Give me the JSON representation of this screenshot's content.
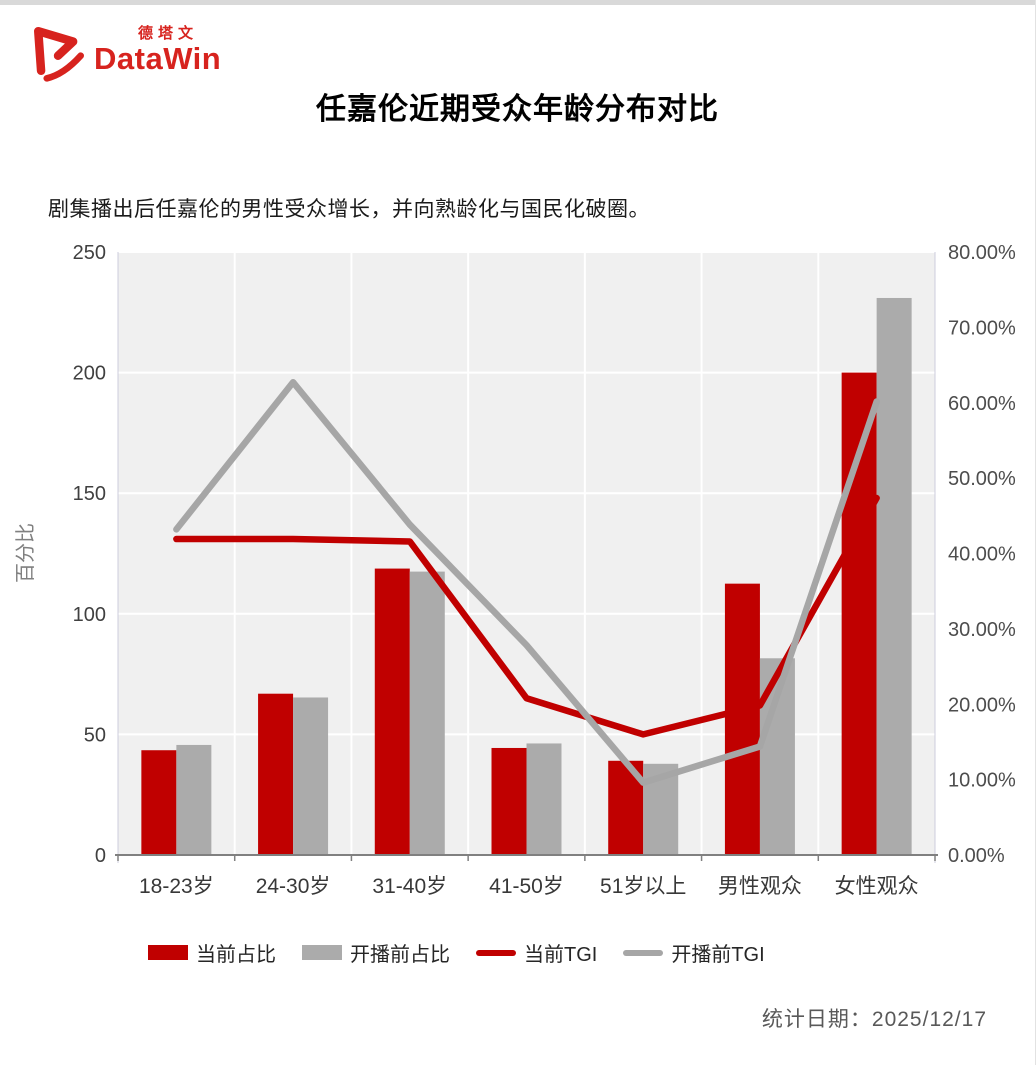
{
  "page": {
    "top_strip_color": "#d9d9d9",
    "background": "#ffffff"
  },
  "header": {
    "logo_cn": "德塔文",
    "logo_en": "DataWin",
    "logo_color": "#d7231e",
    "title": "任嘉伦近期受众年龄分布对比",
    "subtitle": "剧集播出后任嘉伦的男性受众增长，并向熟龄化与国民化破圈。"
  },
  "footer": {
    "date_label": "统计日期：",
    "date_value": "2025/12/17"
  },
  "colors": {
    "accent_red": "#c00000",
    "bar_gray": "#ababab",
    "line_gray": "#a6a6a6",
    "plot_bg": "#f0f0f0",
    "grid": "#ffffff",
    "axis_line": "#808080",
    "tick_text": "#404040",
    "right_tick_text": "#4d4d4d",
    "axis_title_text": "#808080",
    "x_label_text": "#383838",
    "plot_edge": "#ccccdd"
  },
  "chart_data": {
    "type": "combo bar+line (dual axis)",
    "categories": [
      "18-23岁",
      "24-30岁",
      "31-40岁",
      "41-50岁",
      "51岁以上",
      "男性观众",
      "女性观众"
    ],
    "series": [
      {
        "name": "当前占比",
        "type": "bar",
        "axis": "right",
        "color": "#c00000",
        "values": [
          13.9,
          21.4,
          38.0,
          14.2,
          12.5,
          36.0,
          64.0
        ],
        "unit": "%"
      },
      {
        "name": "开播前占比",
        "type": "bar",
        "axis": "right",
        "color": "#ababab",
        "values": [
          14.6,
          20.9,
          37.6,
          14.8,
          12.1,
          26.1,
          73.9
        ],
        "unit": "%"
      },
      {
        "name": "当前TGI",
        "type": "line",
        "axis": "left",
        "color": "#c00000",
        "values": [
          131,
          131,
          130,
          65,
          50,
          62,
          148
        ],
        "unit": "TGI"
      },
      {
        "name": "开播前TGI",
        "type": "line",
        "axis": "left",
        "color": "#a6a6a6",
        "values": [
          135,
          196,
          137,
          87,
          30,
          45,
          188
        ],
        "unit": "TGI"
      }
    ],
    "left_axis": {
      "title": "百分比",
      "min": 0,
      "max": 250,
      "step": 50
    },
    "right_axis": {
      "title": "",
      "min": 0,
      "max": 80,
      "step": 10,
      "tick_format": "0.00%"
    },
    "grid": true,
    "legend_position": "bottom"
  }
}
